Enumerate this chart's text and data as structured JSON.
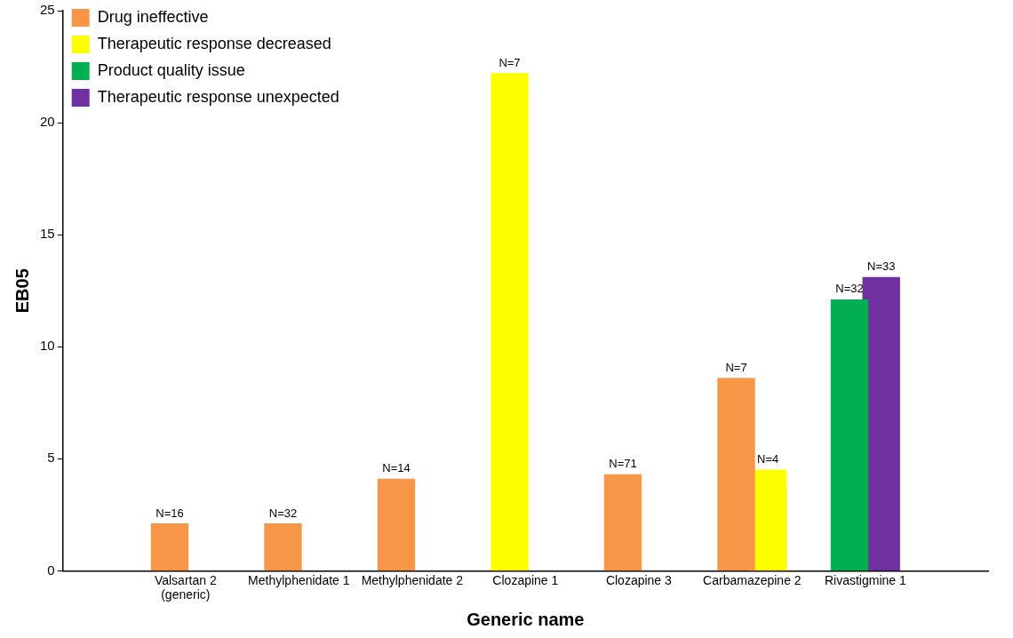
{
  "chart_data": {
    "type": "bar",
    "xlabel": "Generic name",
    "ylabel": "EB05",
    "categories": [
      "Valsartan 2 (generic)",
      "Methylphenidate 1",
      "Methylphenidate 2",
      "Clozapine 1",
      "Clozapine 3",
      "Carbamazepine 2",
      "Rivastigmine 1"
    ],
    "series": [
      {
        "name": "Drug ineffective",
        "color": "#f79646",
        "values": [
          2.1,
          2.1,
          4.1,
          null,
          4.3,
          8.6,
          null
        ]
      },
      {
        "name": "Therapeutic response decreased",
        "color": "#ffff00",
        "values": [
          null,
          null,
          null,
          22.2,
          null,
          4.5,
          null
        ]
      },
      {
        "name": "Product quality issue",
        "color": "#00b050",
        "values": [
          null,
          null,
          null,
          null,
          null,
          null,
          12.1
        ]
      },
      {
        "name": "Therapeutic response unexpected",
        "color": "#7030a0",
        "values": [
          null,
          null,
          null,
          null,
          null,
          null,
          13.1
        ]
      }
    ],
    "annotations": [
      {
        "text": "N=16",
        "x": "Valsartan 2 (generic)",
        "y": 2.1
      },
      {
        "text": "N=32",
        "x": "Methylphenidate 1",
        "y": 2.1
      },
      {
        "text": "N=14",
        "x": "Methylphenidate 2",
        "y": 4.1
      },
      {
        "text": "N=7",
        "x": "Clozapine 1",
        "y": 22.2
      },
      {
        "text": "N=71",
        "x": "Clozapine 3",
        "y": 4.3
      },
      {
        "text": "N=7",
        "x": "Carbamazepine 2",
        "y": 8.6
      },
      {
        "text": "N=4",
        "x": "Carbamazepine 2",
        "y": 4.5
      },
      {
        "text": "N=32",
        "x": "Rivastigmine 1",
        "y": 12.1
      },
      {
        "text": "N=33",
        "x": "Rivastigmine 1",
        "y": 13.1
      }
    ],
    "ylim": [
      0,
      25
    ],
    "yticks": [
      0,
      5,
      10,
      15,
      20,
      25
    ],
    "grid": false,
    "legend": "top left"
  }
}
